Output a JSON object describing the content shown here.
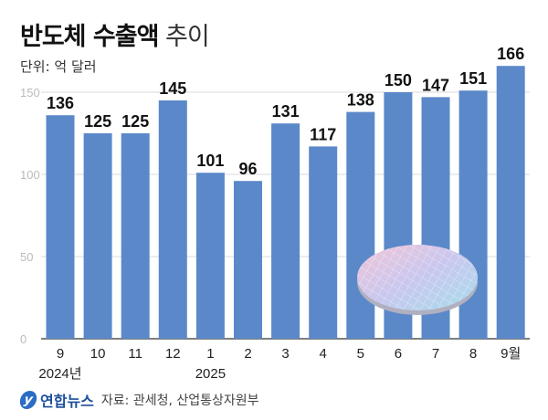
{
  "title_bold": "반도체 수출액",
  "title_light": "추이",
  "unit": "단위: 억 달러",
  "chart_data": {
    "type": "bar",
    "categories": [
      "9",
      "10",
      "11",
      "12",
      "1",
      "2",
      "3",
      "4",
      "5",
      "6",
      "7",
      "8",
      "9월"
    ],
    "year_labels": [
      {
        "index": 0,
        "label": "2024년"
      },
      {
        "index": 4,
        "label": "2025"
      }
    ],
    "values": [
      136,
      125,
      125,
      145,
      101,
      96,
      131,
      117,
      138,
      150,
      147,
      151,
      166
    ],
    "ylim": [
      0,
      170
    ],
    "yticks": [
      0,
      50,
      100,
      150
    ],
    "grid": true,
    "bar_color": "#5b88c9"
  },
  "footer": {
    "logo_text": "연합뉴스",
    "source": "자료: 관세청, 산업통상자원부"
  }
}
